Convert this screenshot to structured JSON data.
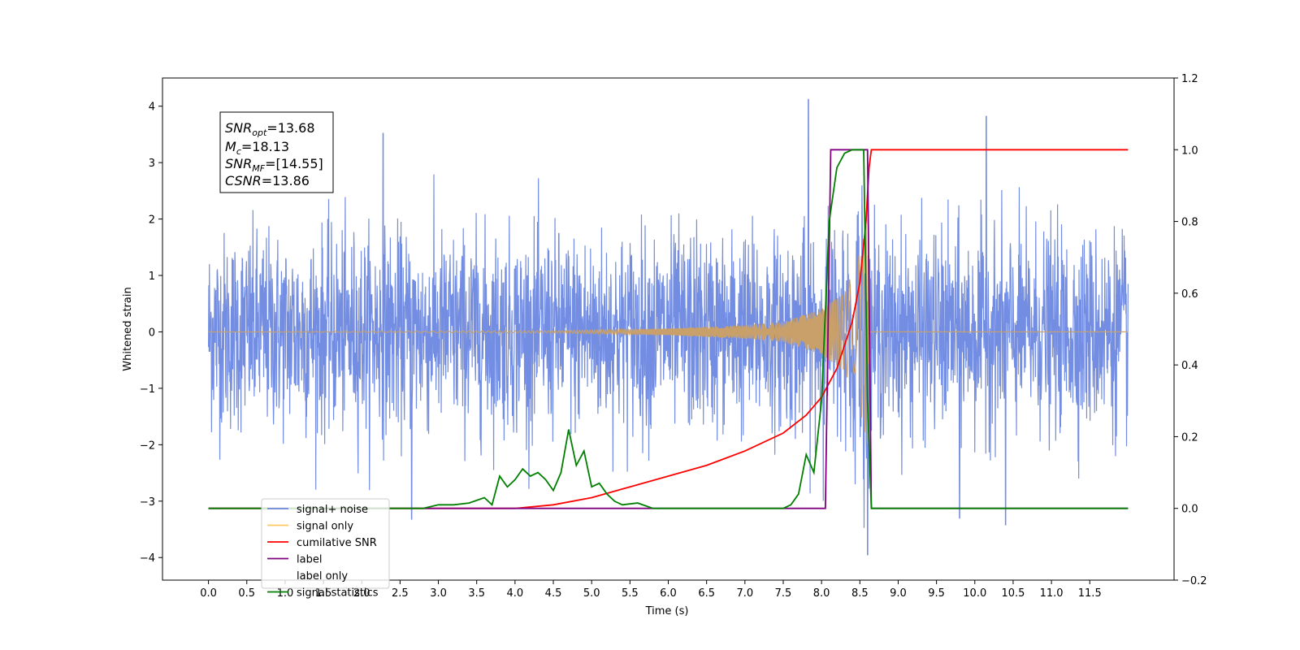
{
  "chart_data": {
    "type": "line",
    "title": "",
    "xlabel": "Time (s)",
    "ylabel": "Whitened strain",
    "y2label": "",
    "xlim": [
      -0.6,
      12.6
    ],
    "ylim": [
      -4.4,
      4.5
    ],
    "y2lim": [
      -0.2,
      1.2
    ],
    "x_ticks": [
      "0.0",
      "0.5",
      "1.0",
      "1.5",
      "2.0",
      "2.5",
      "3.0",
      "3.5",
      "4.0",
      "4.5",
      "5.0",
      "5.5",
      "6.0",
      "6.5",
      "7.0",
      "7.5",
      "8.0",
      "8.5",
      "9.0",
      "9.5",
      "10.0",
      "10.5",
      "11.0",
      "11.5"
    ],
    "y_ticks": [
      "4",
      "3",
      "2",
      "1",
      "0",
      "−1",
      "−2",
      "−3",
      "−4"
    ],
    "y2_ticks": [
      "1.2",
      "1.0",
      "0.8",
      "0.6",
      "0.4",
      "0.2",
      "0.0",
      "−0.2"
    ],
    "grid": false,
    "legend_position": "lower-left",
    "annotation": {
      "snr_opt": {
        "var": "SNR",
        "sub": "opt",
        "value": "=13.68"
      },
      "mc": {
        "var": "M",
        "sub": "c",
        "value": "=18.13"
      },
      "snr_mf": {
        "var": "SNR",
        "sub": "MF",
        "value": "=[14.55]"
      },
      "csnr": {
        "var": "CSNR",
        "sub": "",
        "value": "=13.86"
      }
    },
    "series": [
      {
        "name": "signal+ noise",
        "axis": "left",
        "color": "#6b87e0",
        "description_values": {
          "x_range": [
            0.0,
            12.0
          ],
          "typical_amplitude": 1.2,
          "noted_peaks": [
            [
              2.28,
              3.52
            ],
            [
              7.83,
              4.12
            ],
            [
              10.15,
              3.82
            ],
            [
              8.6,
              -3.95
            ],
            [
              2.65,
              -3.32
            ],
            [
              10.4,
              -3.42
            ],
            [
              9.8,
              -3.3
            ]
          ]
        }
      },
      {
        "name": "signal only",
        "axis": "left",
        "color": "#f2b14c",
        "description_values": {
          "x_range": [
            0.0,
            12.0
          ],
          "merger_time": 8.6,
          "envelope": [
            [
              0.0,
              0.0
            ],
            [
              4.5,
              0.02
            ],
            [
              6.0,
              0.06
            ],
            [
              7.0,
              0.12
            ],
            [
              7.5,
              0.18
            ],
            [
              8.0,
              0.4
            ],
            [
              8.3,
              0.7
            ],
            [
              8.5,
              1.4
            ],
            [
              8.6,
              2.0
            ],
            [
              8.62,
              0.0
            ],
            [
              12.0,
              0.0
            ]
          ]
        }
      },
      {
        "name": "cumilative SNR",
        "axis": "right",
        "color": "#ff0000",
        "x": [
          0.0,
          4.0,
          4.5,
          5.0,
          5.5,
          6.0,
          6.5,
          7.0,
          7.5,
          7.8,
          8.0,
          8.2,
          8.4,
          8.5,
          8.58,
          8.62,
          8.65,
          12.0
        ],
        "y": [
          0.0,
          0.0,
          0.01,
          0.03,
          0.06,
          0.09,
          0.12,
          0.16,
          0.21,
          0.26,
          0.31,
          0.39,
          0.52,
          0.63,
          0.8,
          0.95,
          1.0,
          1.0
        ]
      },
      {
        "name": "label",
        "axis": "right",
        "color": "#800080",
        "x": [
          0.0,
          8.05,
          8.12,
          8.6,
          8.65,
          12.0
        ],
        "y": [
          0.0,
          0.0,
          1.0,
          1.0,
          0.0,
          0.0
        ]
      },
      {
        "name": "label only",
        "axis": "right",
        "color": "#ffffff",
        "x": [],
        "y": []
      },
      {
        "name": "signal statistics",
        "axis": "right",
        "color": "#008000",
        "x": [
          0.0,
          2.8,
          3.0,
          3.2,
          3.4,
          3.6,
          3.7,
          3.8,
          3.9,
          4.0,
          4.1,
          4.2,
          4.3,
          4.4,
          4.5,
          4.6,
          4.7,
          4.8,
          4.9,
          5.0,
          5.1,
          5.2,
          5.3,
          5.4,
          5.6,
          5.8,
          6.5,
          7.5,
          7.6,
          7.7,
          7.8,
          7.9,
          8.0,
          8.1,
          8.2,
          8.3,
          8.4,
          8.5,
          8.55,
          8.6,
          8.65,
          8.7,
          12.0
        ],
        "y": [
          0.0,
          0.0,
          0.01,
          0.01,
          0.015,
          0.03,
          0.01,
          0.09,
          0.06,
          0.08,
          0.11,
          0.09,
          0.1,
          0.08,
          0.05,
          0.1,
          0.22,
          0.12,
          0.16,
          0.06,
          0.07,
          0.04,
          0.02,
          0.01,
          0.015,
          0.0,
          0.0,
          0.0,
          0.01,
          0.04,
          0.15,
          0.1,
          0.3,
          0.8,
          0.95,
          0.99,
          1.0,
          1.0,
          1.0,
          0.3,
          0.0,
          0.0,
          0.0
        ]
      }
    ]
  }
}
